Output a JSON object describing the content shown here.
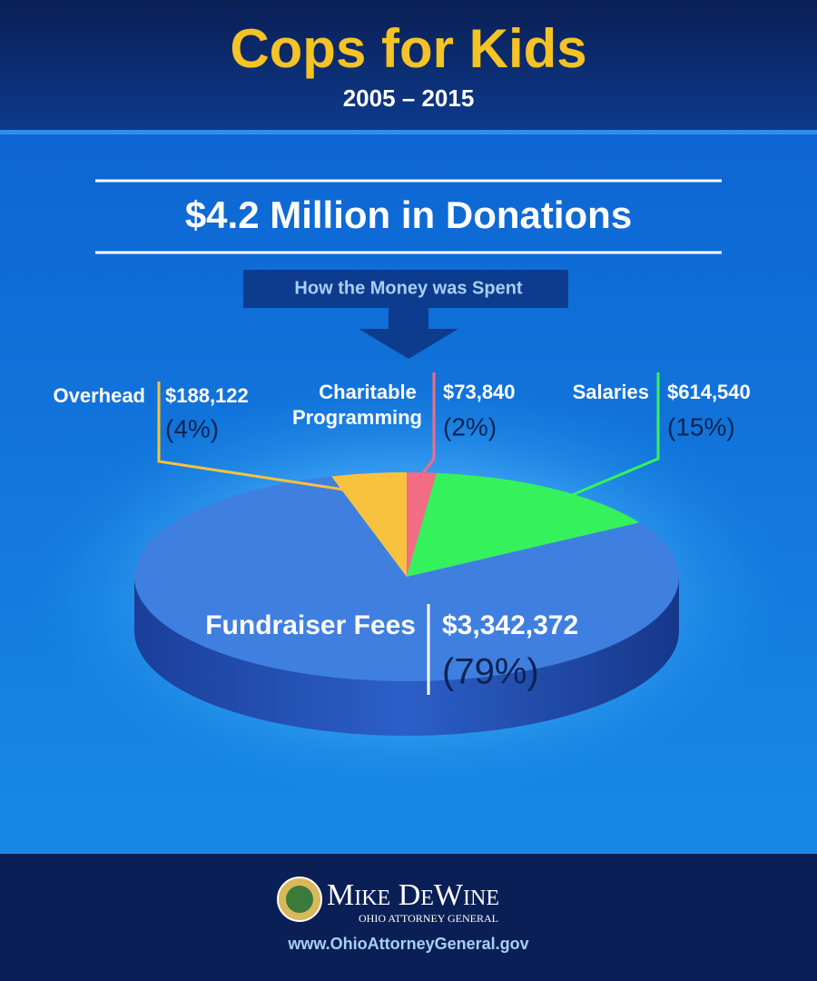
{
  "chart_data": {
    "type": "pie",
    "title": "Cops for Kids",
    "subtitle": "2005 – 2015",
    "headline": "$4.2 Million in Donations",
    "caption": "How the Money was Spent",
    "categories": [
      "Overhead",
      "Charitable Programming",
      "Salaries",
      "Fundraiser Fees"
    ],
    "values": [
      188122,
      73840,
      614540,
      3342372
    ],
    "value_labels": [
      "$188,122",
      "$73,840",
      "$614,540",
      "$3,342,372"
    ],
    "percents": [
      4,
      2,
      15,
      79
    ],
    "percent_labels": [
      "(4%)",
      "(2%)",
      "(15%)",
      "(79%)"
    ],
    "colors": [
      "#f8c23e",
      "#f26d84",
      "#35f25c",
      "#3f7fe0"
    ]
  },
  "footer": {
    "name": "Mike DeWine",
    "office": "OHIO ATTORNEY GENERAL",
    "url": "www.OhioAttorneyGeneral.gov"
  }
}
